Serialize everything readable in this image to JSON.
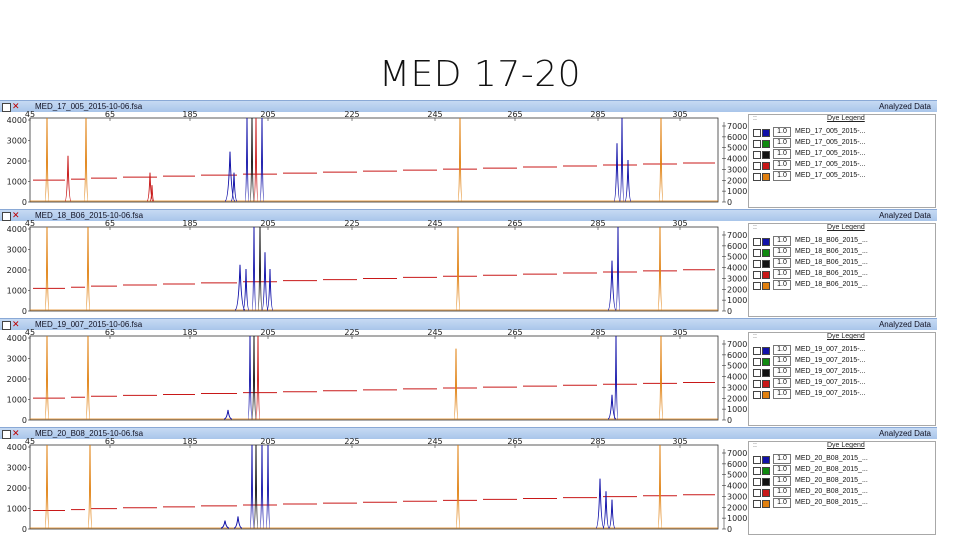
{
  "slide": {
    "title": "MED 17-20"
  },
  "colors": {
    "blue": "#1010a8",
    "green": "#108a10",
    "black": "#111111",
    "red": "#c81818",
    "orange": "#e08010",
    "titlebar": "#b5cdee"
  },
  "panels": [
    {
      "sample": "MED_17_005_2015-10-06.fsa",
      "status": "Analyzed Data",
      "x_ticks": [
        "45",
        "65",
        "185",
        "205",
        "225",
        "245",
        "265",
        "285",
        "305"
      ],
      "y_ticks": [
        "4000",
        "3000",
        "2000",
        "1000",
        "0"
      ],
      "right_ticks": [
        "7000",
        "6000",
        "5000",
        "4000",
        "3000",
        "2000",
        "1000",
        "0"
      ],
      "legend_title": "Dye Legend",
      "legend": [
        {
          "weight": "1.0",
          "name": "MED_17_005_2015-...",
          "color": "blue"
        },
        {
          "weight": "1.0",
          "name": "MED_17_005_2015-...",
          "color": "green"
        },
        {
          "weight": "1.0",
          "name": "MED_17_005_2015-...",
          "color": "black"
        },
        {
          "weight": "1.0",
          "name": "MED_17_005_2015-...",
          "color": "red"
        },
        {
          "weight": "1.0",
          "name": "MED_17_005_2015-...",
          "color": "orange"
        }
      ]
    },
    {
      "sample": "MED_18_B06_2015-10-06.fsa",
      "status": "Analyzed Data",
      "x_ticks": [
        "45",
        "65",
        "185",
        "205",
        "225",
        "245",
        "265",
        "285",
        "305"
      ],
      "y_ticks": [
        "4000",
        "3000",
        "2000",
        "1000",
        "0"
      ],
      "right_ticks": [
        "7000",
        "6000",
        "5000",
        "4000",
        "3000",
        "2000",
        "1000",
        "0"
      ],
      "legend_title": "Dye Legend",
      "legend": [
        {
          "weight": "1.0",
          "name": "MED_18_B06_2015_...",
          "color": "blue"
        },
        {
          "weight": "1.0",
          "name": "MED_18_B06_2015_...",
          "color": "green"
        },
        {
          "weight": "1.0",
          "name": "MED_18_B06_2015_...",
          "color": "black"
        },
        {
          "weight": "1.0",
          "name": "MED_18_B06_2015_...",
          "color": "red"
        },
        {
          "weight": "1.0",
          "name": "MED_18_B06_2015_...",
          "color": "orange"
        }
      ]
    },
    {
      "sample": "MED_19_007_2015-10-06.fsa",
      "status": "Analyzed Data",
      "x_ticks": [
        "45",
        "65",
        "185",
        "205",
        "225",
        "245",
        "265",
        "285",
        "305"
      ],
      "y_ticks": [
        "4000",
        "3000",
        "2000",
        "1000",
        "0"
      ],
      "right_ticks": [
        "7000",
        "6000",
        "5000",
        "4000",
        "3000",
        "2000",
        "1000",
        "0"
      ],
      "legend_title": "Dye Legend",
      "legend": [
        {
          "weight": "1.0",
          "name": "MED_19_007_2015-...",
          "color": "blue"
        },
        {
          "weight": "1.0",
          "name": "MED_19_007_2015-...",
          "color": "green"
        },
        {
          "weight": "1.0",
          "name": "MED_19_007_2015-...",
          "color": "black"
        },
        {
          "weight": "1.0",
          "name": "MED_19_007_2015-...",
          "color": "red"
        },
        {
          "weight": "1.0",
          "name": "MED_19_007_2015-...",
          "color": "orange"
        }
      ]
    },
    {
      "sample": "MED_20_B08_2015-10-06.fsa",
      "status": "Analyzed Data",
      "x_ticks": [
        "45",
        "65",
        "185",
        "205",
        "225",
        "245",
        "265",
        "285",
        "305"
      ],
      "y_ticks": [
        "4000",
        "3000",
        "2000",
        "1000",
        "0"
      ],
      "right_ticks": [
        "7000",
        "6000",
        "5000",
        "4000",
        "3000",
        "2000",
        "1000",
        "0"
      ],
      "legend_title": "Dye Legend",
      "legend": [
        {
          "weight": "1.0",
          "name": "MED_20_B08_2015_...",
          "color": "blue"
        },
        {
          "weight": "1.0",
          "name": "MED_20_B08_2015_...",
          "color": "green"
        },
        {
          "weight": "1.0",
          "name": "MED_20_B08_2015_...",
          "color": "black"
        },
        {
          "weight": "1.0",
          "name": "MED_20_B08_2015_...",
          "color": "red"
        },
        {
          "weight": "1.0",
          "name": "MED_20_B08_2015_...",
          "color": "orange"
        }
      ]
    }
  ]
}
